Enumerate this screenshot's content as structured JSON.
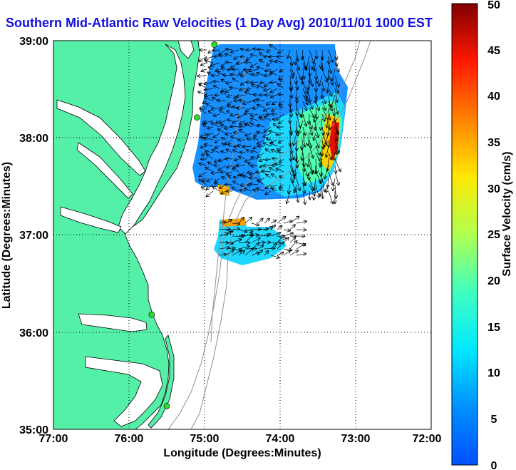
{
  "title": "Southern Mid-Atlantic Raw Velocities (1 Day Avg) 2010/11/01 1000 EST",
  "x_axis": {
    "label": "Longitude (Degrees:Minutes)",
    "ticks": [
      "77:00",
      "76:00",
      "75:00",
      "74:00",
      "73:00",
      "72:00"
    ]
  },
  "y_axis": {
    "label": "Latitude (Degrees:Minutes)",
    "ticks": [
      "35:00",
      "36:00",
      "37:00",
      "38:00",
      "39:00"
    ]
  },
  "colorbar": {
    "label": "Surface Velocity (cm/s)",
    "min": 0,
    "max": 50,
    "ticks": [
      "0",
      "5",
      "10",
      "15",
      "20",
      "25",
      "30",
      "35",
      "40",
      "45",
      "50"
    ]
  },
  "colors": {
    "land": "#55f0a8",
    "coast": "#000000",
    "grid": "#000000",
    "bathymetry": "#909090",
    "station": "#2edc2e",
    "title": "#1010e0"
  },
  "stations": [
    {
      "lon": -74.87,
      "lat": 38.96
    },
    {
      "lon": -75.1,
      "lat": 38.21
    },
    {
      "lon": -75.7,
      "lat": 36.18
    },
    {
      "lon": -75.5,
      "lat": 35.24
    }
  ]
}
